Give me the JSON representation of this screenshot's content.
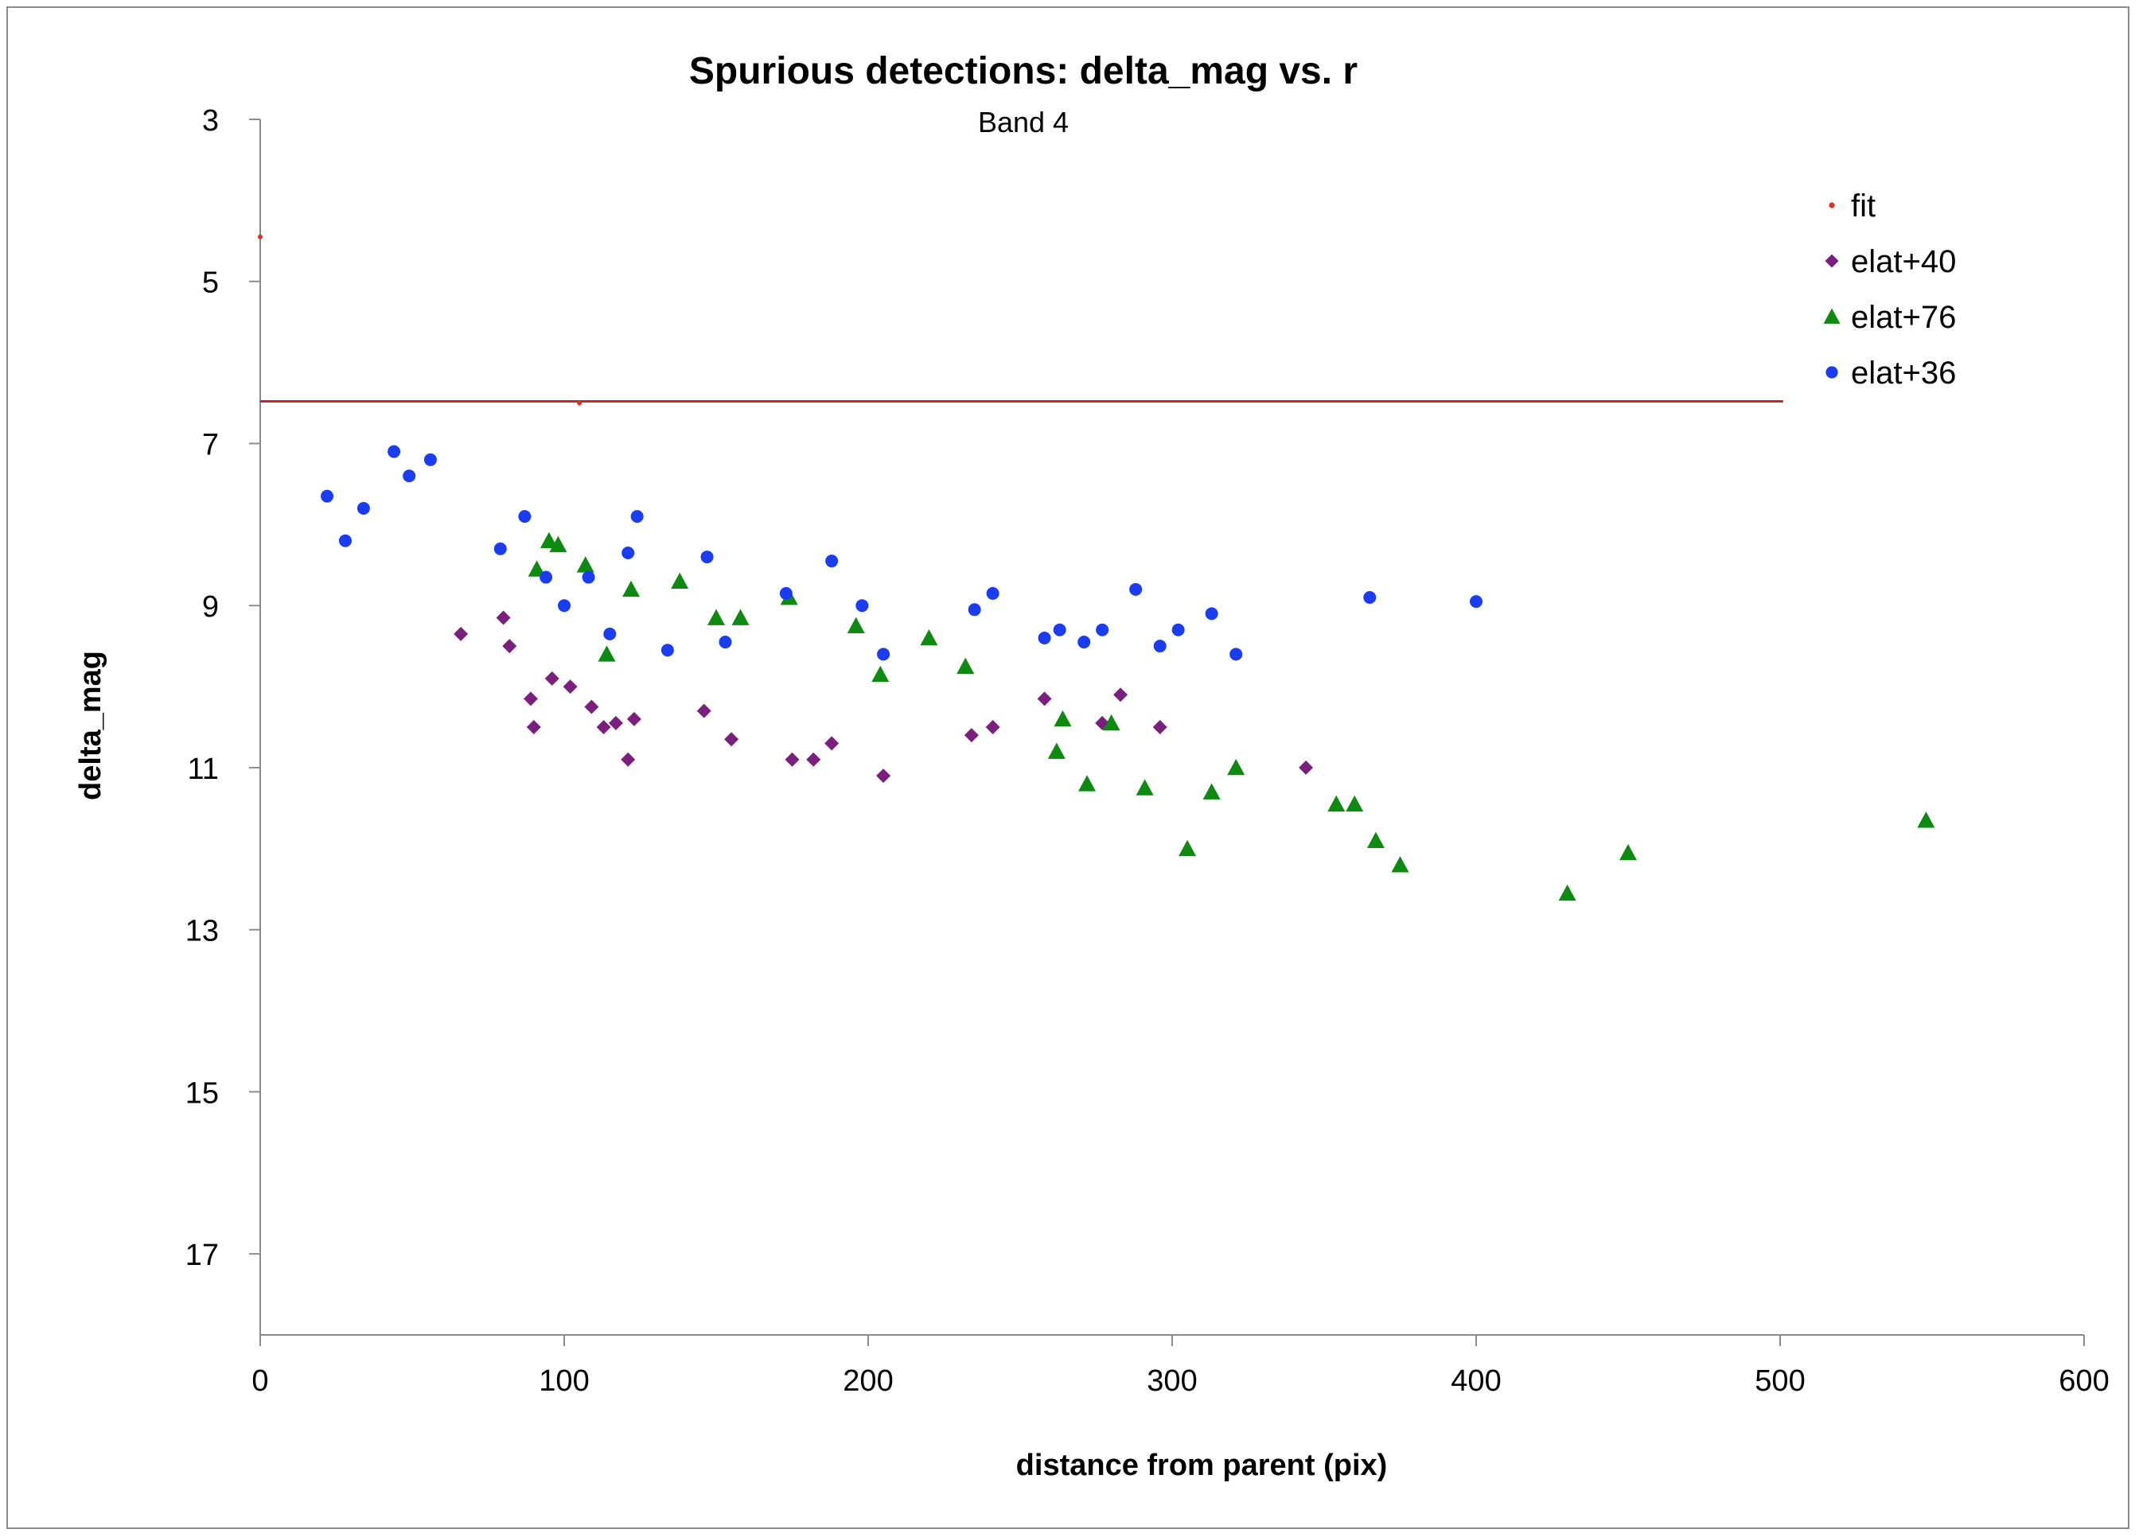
{
  "chart_data": {
    "type": "scatter",
    "title": "Spurious detections: delta_mag vs. r",
    "subtitle": "Band 4",
    "xlabel": "distance from parent (pix)",
    "ylabel": "delta_mag",
    "xlim": [
      0,
      600
    ],
    "ylim": [
      3,
      18
    ],
    "y_inverted": true,
    "x_ticks": [
      0,
      100,
      200,
      300,
      400,
      500,
      600
    ],
    "y_ticks": [
      3,
      5,
      7,
      9,
      11,
      13,
      15,
      17
    ],
    "grid": false,
    "legend_position": "top-right",
    "series": [
      {
        "name": "fit",
        "marker": "dot",
        "color": "#e03020",
        "points": [
          [
            0,
            4.45
          ],
          [
            105,
            6.5
          ]
        ],
        "line": {
          "x": [
            0,
            501
          ],
          "y": [
            6.48,
            6.48
          ],
          "color": "#c0282d"
        }
      },
      {
        "name": "elat+40",
        "marker": "diamond",
        "color": "#7b1f7e",
        "points": [
          [
            66,
            9.35
          ],
          [
            80,
            9.15
          ],
          [
            82,
            9.5
          ],
          [
            89,
            10.15
          ],
          [
            90,
            10.5
          ],
          [
            96,
            9.9
          ],
          [
            102,
            10.0
          ],
          [
            109,
            10.25
          ],
          [
            113,
            10.5
          ],
          [
            117,
            10.45
          ],
          [
            121,
            10.9
          ],
          [
            123,
            10.4
          ],
          [
            146,
            10.3
          ],
          [
            155,
            10.65
          ],
          [
            175,
            10.9
          ],
          [
            182,
            10.9
          ],
          [
            188,
            10.7
          ],
          [
            205,
            11.1
          ],
          [
            234,
            10.6
          ],
          [
            241,
            10.5
          ],
          [
            258,
            10.15
          ],
          [
            277,
            10.45
          ],
          [
            283,
            10.1
          ],
          [
            296,
            10.5
          ],
          [
            344,
            11.0
          ]
        ]
      },
      {
        "name": "elat+76",
        "marker": "triangle",
        "color": "#0e8a10",
        "points": [
          [
            91,
            8.55
          ],
          [
            95,
            8.2
          ],
          [
            98,
            8.25
          ],
          [
            107,
            8.5
          ],
          [
            114,
            9.6
          ],
          [
            122,
            8.8
          ],
          [
            138,
            8.7
          ],
          [
            150,
            9.15
          ],
          [
            158,
            9.15
          ],
          [
            174,
            8.9
          ],
          [
            196,
            9.25
          ],
          [
            204,
            9.85
          ],
          [
            220,
            9.4
          ],
          [
            232,
            9.75
          ],
          [
            262,
            10.8
          ],
          [
            264,
            10.4
          ],
          [
            272,
            11.2
          ],
          [
            280,
            10.45
          ],
          [
            291,
            11.25
          ],
          [
            305,
            12.0
          ],
          [
            313,
            11.3
          ],
          [
            321,
            11.0
          ],
          [
            354,
            11.45
          ],
          [
            360,
            11.45
          ],
          [
            367,
            11.9
          ],
          [
            375,
            12.2
          ],
          [
            430,
            12.55
          ],
          [
            450,
            12.05
          ],
          [
            548,
            11.65
          ]
        ]
      },
      {
        "name": "elat+36",
        "marker": "circle",
        "color": "#1b3df2",
        "points": [
          [
            22,
            7.65
          ],
          [
            28,
            8.2
          ],
          [
            34,
            7.8
          ],
          [
            44,
            7.1
          ],
          [
            49,
            7.4
          ],
          [
            56,
            7.2
          ],
          [
            79,
            8.3
          ],
          [
            87,
            7.9
          ],
          [
            94,
            8.65
          ],
          [
            100,
            9.0
          ],
          [
            108,
            8.65
          ],
          [
            115,
            9.35
          ],
          [
            121,
            8.35
          ],
          [
            124,
            7.9
          ],
          [
            134,
            9.55
          ],
          [
            147,
            8.4
          ],
          [
            153,
            9.45
          ],
          [
            173,
            8.85
          ],
          [
            188,
            8.45
          ],
          [
            198,
            9.0
          ],
          [
            205,
            9.6
          ],
          [
            235,
            9.05
          ],
          [
            241,
            8.85
          ],
          [
            258,
            9.4
          ],
          [
            263,
            9.3
          ],
          [
            271,
            9.45
          ],
          [
            277,
            9.3
          ],
          [
            288,
            8.8
          ],
          [
            296,
            9.5
          ],
          [
            302,
            9.3
          ],
          [
            313,
            9.1
          ],
          [
            321,
            9.6
          ],
          [
            365,
            8.9
          ],
          [
            400,
            8.95
          ]
        ]
      }
    ]
  }
}
